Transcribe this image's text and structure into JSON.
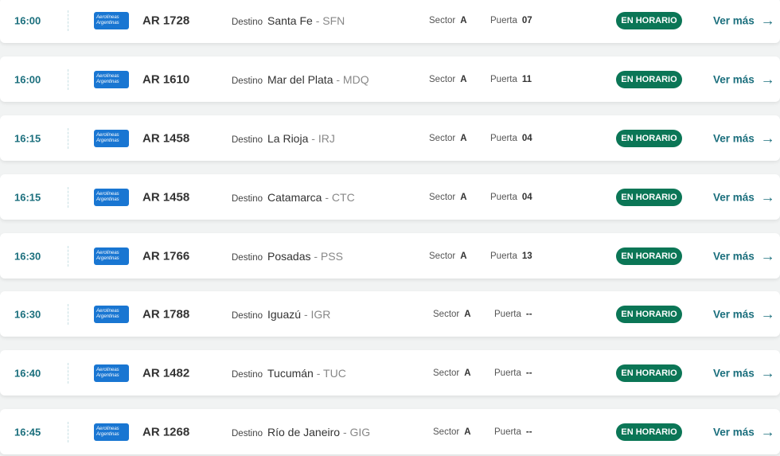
{
  "colors": {
    "time": "#1b6f7d",
    "badge": "#0b7656",
    "link": "#1b6f7d",
    "logo": "#1976d2"
  },
  "labels": {
    "destino": "Destino",
    "sector": "Sector",
    "puerta": "Puerta",
    "ver_mas": "Ver más",
    "airline_logo": "Aerolíneas Argentinas"
  },
  "flights": [
    {
      "time": "16:00",
      "flight": "AR 1728",
      "city": "Santa Fe",
      "code": "- SFN",
      "sector": "A",
      "gate": "07",
      "status": "EN HORARIO"
    },
    {
      "time": "16:00",
      "flight": "AR 1610",
      "city": "Mar del Plata",
      "code": "- MDQ",
      "sector": "A",
      "gate": "11",
      "status": "EN HORARIO"
    },
    {
      "time": "16:15",
      "flight": "AR 1458",
      "city": "La Rioja",
      "code": "- IRJ",
      "sector": "A",
      "gate": "04",
      "status": "EN HORARIO"
    },
    {
      "time": "16:15",
      "flight": "AR 1458",
      "city": "Catamarca",
      "code": "- CTC",
      "sector": "A",
      "gate": "04",
      "status": "EN HORARIO"
    },
    {
      "time": "16:30",
      "flight": "AR 1766",
      "city": "Posadas",
      "code": "- PSS",
      "sector": "A",
      "gate": "13",
      "status": "EN HORARIO"
    },
    {
      "time": "16:30",
      "flight": "AR 1788",
      "city": "Iguazú",
      "code": "- IGR",
      "sector": "A",
      "gate": "--",
      "status": "EN HORARIO"
    },
    {
      "time": "16:40",
      "flight": "AR 1482",
      "city": "Tucumán",
      "code": "- TUC",
      "sector": "A",
      "gate": "--",
      "status": "EN HORARIO"
    },
    {
      "time": "16:45",
      "flight": "AR 1268",
      "city": "Río de Janeiro",
      "code": "- GIG",
      "sector": "A",
      "gate": "--",
      "status": "EN HORARIO"
    }
  ]
}
